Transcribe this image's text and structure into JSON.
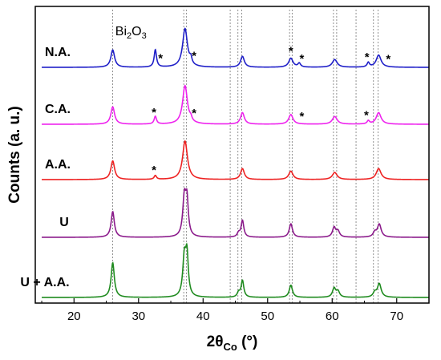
{
  "chart_data": {
    "type": "line",
    "xlabel_main": "2θ",
    "xlabel_sub": "Co",
    "xlabel_unit": " (°)",
    "ylabel": "Counts (a. u.)",
    "xlim": [
      14,
      75
    ],
    "x_ticks": [
      20,
      30,
      40,
      50,
      60,
      70
    ],
    "bi2o3_label": {
      "base": "Bi",
      "sub1": "2",
      "mid": "O",
      "sub2": "3"
    },
    "reference_lines_x": [
      26.0,
      37.0,
      37.4,
      44.2,
      45.4,
      46.0,
      53.4,
      53.8,
      60.2,
      60.7,
      63.7,
      66.4,
      67.1
    ],
    "series": [
      {
        "name": "N.A.",
        "color": "#1f1fc8",
        "baseline": 0.0,
        "peaks": [
          {
            "x": 26.0,
            "h": 1.35,
            "w": 0.35
          },
          {
            "x": 32.6,
            "h": 1.35,
            "w": 0.22
          },
          {
            "x": 37.2,
            "h": 3.0,
            "w": 0.45
          },
          {
            "x": 38.1,
            "h": 0.45,
            "w": 0.2
          },
          {
            "x": 46.1,
            "h": 0.85,
            "w": 0.35
          },
          {
            "x": 53.6,
            "h": 0.7,
            "w": 0.4
          },
          {
            "x": 54.9,
            "h": 0.3,
            "w": 0.25
          },
          {
            "x": 60.4,
            "h": 0.6,
            "w": 0.45
          },
          {
            "x": 65.6,
            "h": 0.35,
            "w": 0.22
          },
          {
            "x": 67.2,
            "h": 0.95,
            "w": 0.45
          }
        ],
        "stars_x": [
          33.4,
          38.6,
          53.6,
          55.3,
          65.4,
          68.7
        ]
      },
      {
        "name": "C.A.",
        "color": "#ee22ee",
        "baseline": 0.0,
        "peaks": [
          {
            "x": 26.0,
            "h": 1.35,
            "w": 0.35
          },
          {
            "x": 32.6,
            "h": 0.6,
            "w": 0.22
          },
          {
            "x": 37.2,
            "h": 3.0,
            "w": 0.45
          },
          {
            "x": 38.1,
            "h": 0.25,
            "w": 0.2
          },
          {
            "x": 46.1,
            "h": 0.9,
            "w": 0.35
          },
          {
            "x": 53.6,
            "h": 0.75,
            "w": 0.4
          },
          {
            "x": 60.4,
            "h": 0.6,
            "w": 0.45
          },
          {
            "x": 65.6,
            "h": 0.25,
            "w": 0.22
          },
          {
            "x": 67.2,
            "h": 0.9,
            "w": 0.45
          }
        ],
        "stars_x": [
          32.4,
          38.6,
          55.3,
          65.3
        ]
      },
      {
        "name": "A.A.",
        "color": "#ee2222",
        "baseline": 0.0,
        "peaks": [
          {
            "x": 26.0,
            "h": 1.45,
            "w": 0.35
          },
          {
            "x": 32.6,
            "h": 0.3,
            "w": 0.22
          },
          {
            "x": 37.2,
            "h": 3.0,
            "w": 0.45
          },
          {
            "x": 46.1,
            "h": 0.85,
            "w": 0.35
          },
          {
            "x": 53.6,
            "h": 0.65,
            "w": 0.4
          },
          {
            "x": 60.4,
            "h": 0.55,
            "w": 0.45
          },
          {
            "x": 67.2,
            "h": 0.85,
            "w": 0.45
          }
        ],
        "stars_x": [
          32.4
        ]
      },
      {
        "name": "U",
        "color": "#8b1a8b",
        "baseline": 0.0,
        "peaks": [
          {
            "x": 26.0,
            "h": 2.0,
            "w": 0.3
          },
          {
            "x": 37.1,
            "h": 3.0,
            "w": 0.3
          },
          {
            "x": 37.5,
            "h": 2.6,
            "w": 0.25
          },
          {
            "x": 45.5,
            "h": 0.3,
            "w": 0.25
          },
          {
            "x": 46.1,
            "h": 1.3,
            "w": 0.25
          },
          {
            "x": 53.6,
            "h": 1.05,
            "w": 0.3
          },
          {
            "x": 60.3,
            "h": 0.75,
            "w": 0.3
          },
          {
            "x": 60.9,
            "h": 0.45,
            "w": 0.3
          },
          {
            "x": 66.6,
            "h": 0.35,
            "w": 0.3
          },
          {
            "x": 67.3,
            "h": 1.0,
            "w": 0.35
          }
        ],
        "stars_x": []
      },
      {
        "name": "U + A.A.",
        "color": "#1f8b1f",
        "baseline": 0.0,
        "peaks": [
          {
            "x": 26.0,
            "h": 2.7,
            "w": 0.3
          },
          {
            "x": 37.1,
            "h": 3.0,
            "w": 0.3
          },
          {
            "x": 37.5,
            "h": 3.0,
            "w": 0.25
          },
          {
            "x": 45.5,
            "h": 0.35,
            "w": 0.25
          },
          {
            "x": 46.1,
            "h": 1.3,
            "w": 0.25
          },
          {
            "x": 53.6,
            "h": 0.95,
            "w": 0.3
          },
          {
            "x": 60.3,
            "h": 0.7,
            "w": 0.3
          },
          {
            "x": 60.9,
            "h": 0.45,
            "w": 0.3
          },
          {
            "x": 66.6,
            "h": 0.35,
            "w": 0.3
          },
          {
            "x": 67.3,
            "h": 1.05,
            "w": 0.35
          }
        ],
        "stars_x": []
      }
    ],
    "legend": "none",
    "grid": false
  }
}
